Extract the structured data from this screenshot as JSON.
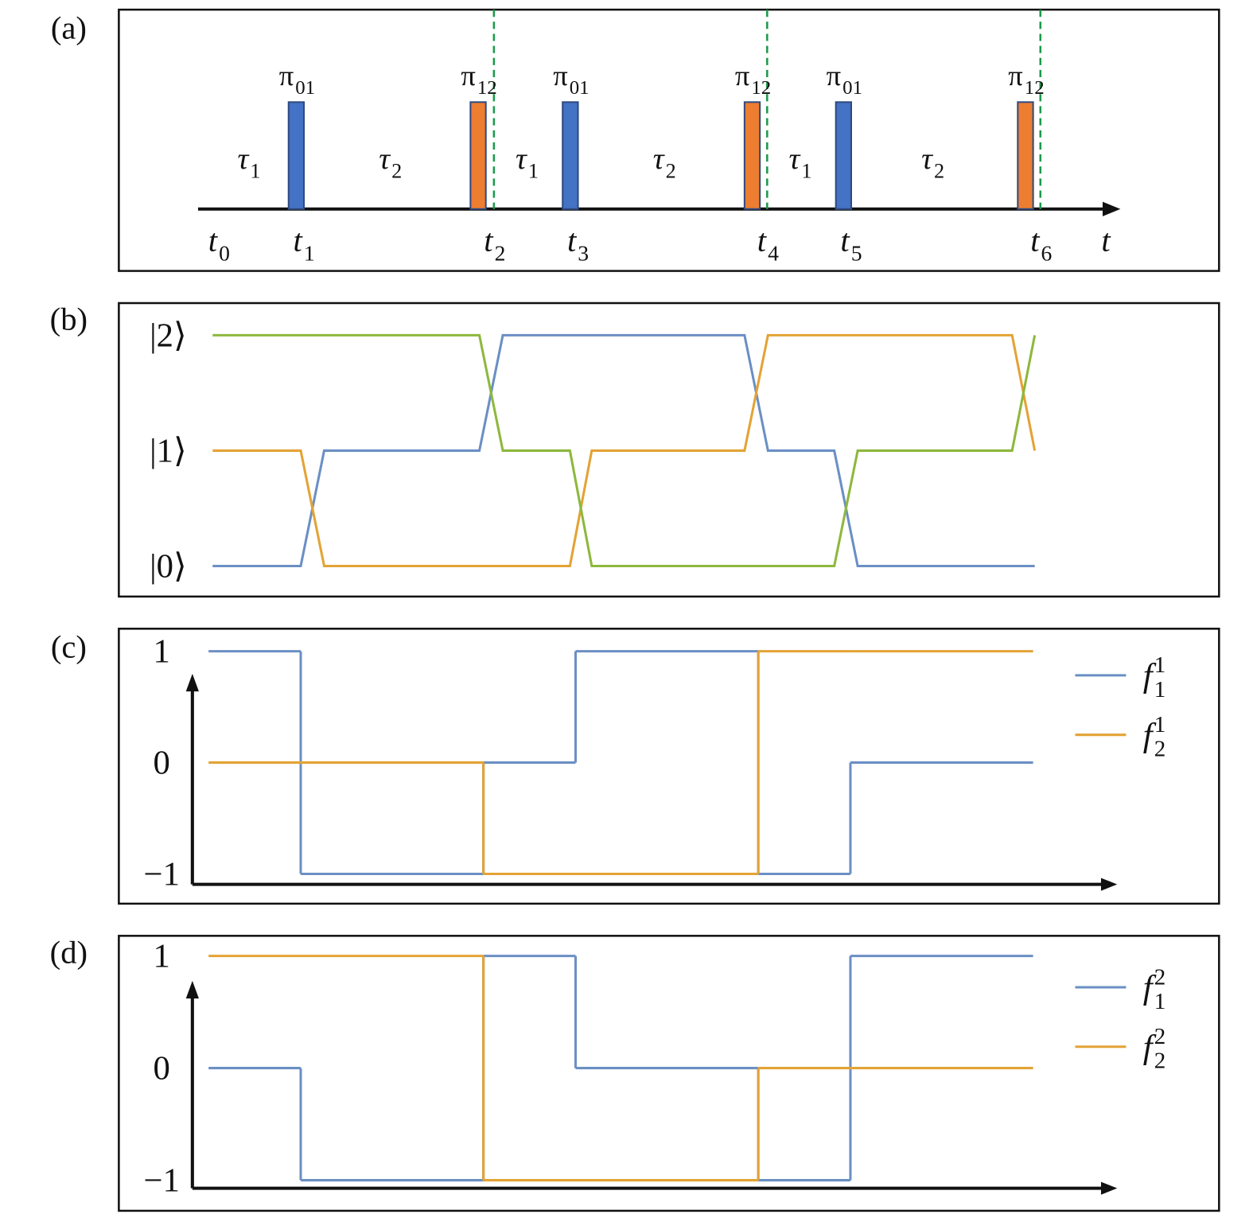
{
  "panels": [
    {
      "label": "(a)",
      "type": "pulses",
      "pulses": [
        {
          "time": 10.35,
          "color": "#4472c4",
          "label": {
            "base": "π",
            "sub": "01"
          }
        },
        {
          "time": 32.85,
          "color": "#ed7d31",
          "label": {
            "base": "π",
            "sub": "12"
          }
        },
        {
          "time": 44.25,
          "color": "#4472c4",
          "label": {
            "base": "π",
            "sub": "01"
          }
        },
        {
          "time": 66.75,
          "color": "#ed7d31",
          "label": {
            "base": "π",
            "sub": "12"
          }
        },
        {
          "time": 78.05,
          "color": "#4472c4",
          "label": {
            "base": "π",
            "sub": "01"
          }
        },
        {
          "time": 100.55,
          "color": "#ed7d31",
          "label": {
            "base": "π",
            "sub": "12"
          }
        }
      ],
      "markers": [
        34.8,
        68.6,
        102.4
      ],
      "marker_color": "#1a9a4a",
      "intervals": [
        {
          "base": "τ",
          "sub": "1"
        },
        {
          "base": "τ",
          "sub": "2"
        },
        {
          "base": "τ",
          "sub": "1"
        },
        {
          "base": "τ",
          "sub": "2"
        },
        {
          "base": "τ",
          "sub": "1"
        },
        {
          "base": "τ",
          "sub": "2"
        }
      ],
      "times": [
        {
          "base": "t",
          "sub": "0"
        },
        {
          "base": "t",
          "sub": "1"
        },
        {
          "base": "t",
          "sub": "2"
        },
        {
          "base": "t",
          "sub": "3"
        },
        {
          "base": "t",
          "sub": "4"
        },
        {
          "base": "t",
          "sub": "5"
        },
        {
          "base": "t",
          "sub": "6"
        },
        {
          "base": "t"
        }
      ]
    },
    {
      "label": "(b)",
      "type": "line",
      "x": [
        0,
        10.9,
        13.8,
        33,
        35.9,
        44.2,
        46.9,
        65.8,
        68.7,
        76.9,
        79.8,
        98.9,
        101.7
      ],
      "ylim": [
        0,
        2
      ],
      "yticks": [
        {
          "value": 0,
          "label": "|0⟩"
        },
        {
          "value": 1,
          "label": "|1⟩"
        },
        {
          "value": 2,
          "label": "|2⟩"
        }
      ],
      "series": [
        {
          "color": "#6b8fc4",
          "values": [
            0,
            0,
            1,
            1,
            2,
            2,
            2,
            2,
            1,
            1,
            0,
            0,
            0
          ]
        },
        {
          "color": "#e3a335",
          "values": [
            1,
            1,
            0,
            0,
            0,
            0,
            1,
            1,
            2,
            2,
            2,
            2,
            1
          ]
        },
        {
          "color": "#8db83d",
          "values": [
            2,
            2,
            2,
            2,
            1,
            1,
            0,
            0,
            0,
            0,
            1,
            1,
            2
          ]
        }
      ]
    },
    {
      "label": "(c)",
      "type": "step",
      "edges": [
        -0.5,
        10.9,
        33.5,
        44.9,
        67.5,
        78.9,
        101.5
      ],
      "ylim": [
        -1,
        1
      ],
      "yticks": [
        {
          "value": -1,
          "label": "−1"
        },
        0,
        1
      ],
      "series": [
        {
          "name": {
            "base": "f",
            "sup": "1",
            "sub": "1"
          },
          "color": "#6b8fc4",
          "values": [
            1,
            -1,
            0,
            1,
            -1,
            0
          ]
        },
        {
          "name": {
            "base": "f",
            "sup": "1",
            "sub": "2"
          },
          "color": "#e3a335",
          "values": [
            0,
            0,
            -1,
            -1,
            1,
            1
          ]
        }
      ]
    },
    {
      "label": "(d)",
      "type": "step",
      "edges": [
        -0.5,
        10.9,
        33.5,
        44.9,
        67.5,
        78.9,
        101.5
      ],
      "ylim": [
        -1,
        1
      ],
      "yticks": [
        {
          "value": -1,
          "label": "−1"
        },
        0,
        1
      ],
      "series": [
        {
          "name": {
            "base": "f",
            "sup": "2",
            "sub": "1"
          },
          "color": "#6b8fc4",
          "values": [
            0,
            -1,
            1,
            0,
            -1,
            1
          ]
        },
        {
          "name": {
            "base": "f",
            "sup": "2",
            "sub": "2"
          },
          "color": "#e3a335",
          "values": [
            1,
            1,
            -1,
            -1,
            0,
            0
          ]
        }
      ]
    }
  ]
}
